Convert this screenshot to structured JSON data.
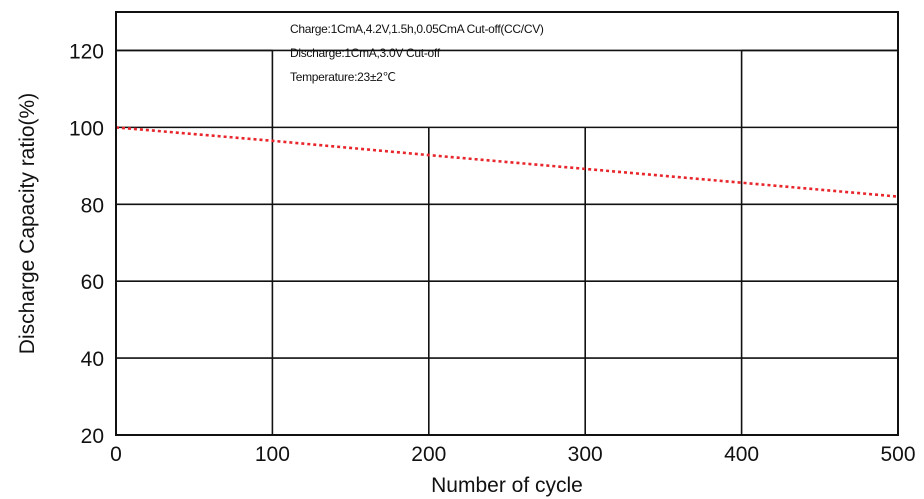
{
  "chart_data": {
    "type": "line",
    "title": "",
    "xlabel": "Number of cycle",
    "ylabel": "Discharge Capacity ratio(%)",
    "xlim": [
      0,
      500
    ],
    "ylim": [
      20,
      130
    ],
    "x_ticks": [
      0,
      100,
      200,
      300,
      400,
      500
    ],
    "x_tick_labels": [
      "0",
      "100",
      "200",
      "300",
      "400",
      "500"
    ],
    "y_ticks": [
      20,
      40,
      60,
      80,
      100,
      120
    ],
    "y_tick_labels": [
      "20",
      "40",
      "60",
      "80",
      "100",
      "120"
    ],
    "grid": true,
    "annotations": [
      "Charge:1CmA,4.2V,1.5h,0.05CmA Cut-off(CC/CV)",
      "Discharge:1CmA,3.0V Cut-off",
      "Temperature:23±2℃"
    ],
    "series": [
      {
        "color": "#e8262b",
        "style": "dotted",
        "x": [
          0,
          100,
          200,
          300,
          400,
          500
        ],
        "y": [
          100,
          96.5,
          92.8,
          89.2,
          85.6,
          82.0
        ]
      }
    ]
  }
}
